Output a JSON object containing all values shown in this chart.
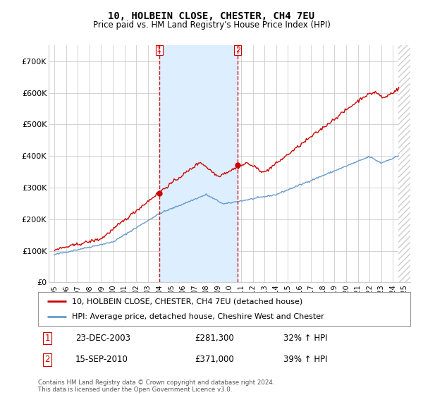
{
  "title": "10, HOLBEIN CLOSE, CHESTER, CH4 7EU",
  "subtitle": "Price paid vs. HM Land Registry's House Price Index (HPI)",
  "footer": "Contains HM Land Registry data © Crown copyright and database right 2024.\nThis data is licensed under the Open Government Licence v3.0.",
  "legend_line1": "10, HOLBEIN CLOSE, CHESTER, CH4 7EU (detached house)",
  "legend_line2": "HPI: Average price, detached house, Cheshire West and Chester",
  "sale1_label": "1",
  "sale1_date": "23-DEC-2003",
  "sale1_price": "£281,300",
  "sale1_hpi": "32% ↑ HPI",
  "sale1_year": 2003.97,
  "sale1_value": 281300,
  "sale2_label": "2",
  "sale2_date": "15-SEP-2010",
  "sale2_price": "£371,000",
  "sale2_hpi": "39% ↑ HPI",
  "sale2_year": 2010.71,
  "sale2_value": 371000,
  "red_color": "#cc0000",
  "blue_color": "#6699cc",
  "dashed_color": "#cc0000",
  "shaded_color": "#ddeeff",
  "hatch_color": "#cccccc",
  "background_color": "#ffffff",
  "grid_color": "#cccccc",
  "ylim": [
    0,
    750000
  ],
  "yticks": [
    0,
    100000,
    200000,
    300000,
    400000,
    500000,
    600000,
    700000
  ],
  "ytick_labels": [
    "£0",
    "£100K",
    "£200K",
    "£300K",
    "£400K",
    "£500K",
    "£600K",
    "£700K"
  ],
  "xlim_start": 1994.5,
  "xlim_end": 2025.5,
  "data_end_year": 2024.5,
  "xtick_years": [
    1995,
    1996,
    1997,
    1998,
    1999,
    2000,
    2001,
    2002,
    2003,
    2004,
    2005,
    2006,
    2007,
    2008,
    2009,
    2010,
    2011,
    2012,
    2013,
    2014,
    2015,
    2016,
    2017,
    2018,
    2019,
    2020,
    2021,
    2022,
    2023,
    2024,
    2025
  ]
}
